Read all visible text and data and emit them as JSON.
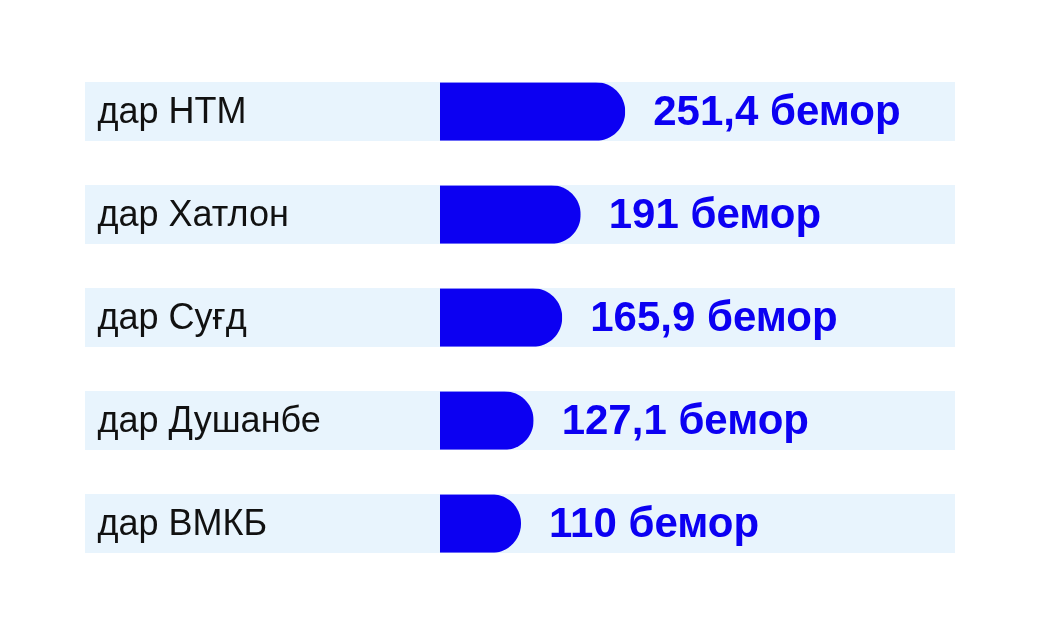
{
  "chart_data": {
    "type": "bar",
    "orientation": "horizontal",
    "tick_labels": "y",
    "categories": [
      "дар НТМ",
      "дар Хатлон",
      "дар Суғд",
      "дар Душанбе",
      "дар ВМКБ"
    ],
    "values": [
      251.4,
      191,
      165.9,
      127.1,
      110
    ],
    "value_labels": [
      "251,4 бемор",
      "191 бемор",
      "165,9 бемор",
      "127,1 бемор",
      "110 бемор"
    ],
    "color": "#0c00f2"
  }
}
